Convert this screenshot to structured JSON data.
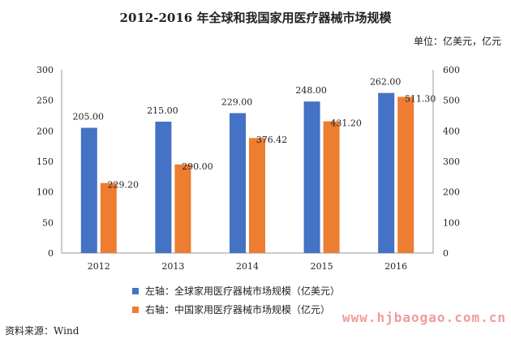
{
  "chart_data": {
    "type": "bar",
    "title": "2012-2016 年全球和我国家用医疗器械市场规模",
    "unit": "单位：亿美元，亿元",
    "categories": [
      "2012",
      "2013",
      "2014",
      "2015",
      "2016"
    ],
    "series": [
      {
        "name": "左轴：全球家用医疗器械市场规模（亿美元）",
        "axis": "left",
        "color": "#4472C4",
        "values": [
          205.0,
          215.0,
          229.0,
          248.0,
          262.0
        ],
        "labels": [
          "205.00",
          "215.00",
          "229.00",
          "248.00",
          "262.00"
        ]
      },
      {
        "name": "右轴：中国家用医疗器械市场规模（亿元）",
        "axis": "right",
        "color": "#ED7D31",
        "values": [
          229.2,
          290.0,
          376.42,
          431.2,
          511.3
        ],
        "labels": [
          "229.20",
          "290.00",
          "376.42",
          "431.20",
          "511.30"
        ]
      }
    ],
    "y_left": {
      "min": 0,
      "max": 300,
      "ticks": [
        "0",
        "50",
        "100",
        "150",
        "200",
        "250",
        "300"
      ]
    },
    "y_right": {
      "min": 0,
      "max": 600,
      "ticks": [
        "0",
        "100",
        "200",
        "300",
        "400",
        "500",
        "600"
      ]
    },
    "grid": false,
    "legend_position": "bottom"
  },
  "source": "资料来源：Wind",
  "watermark": "www.hjbaogao.com.cn"
}
